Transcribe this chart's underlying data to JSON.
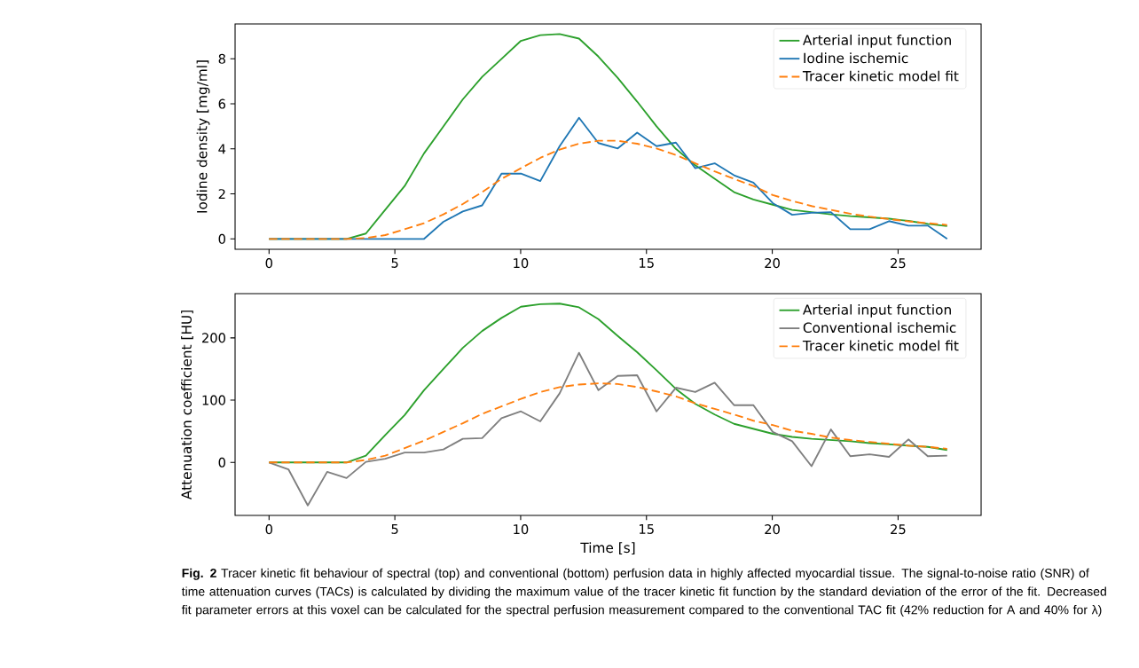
{
  "chart_data": [
    {
      "type": "line",
      "ylabel": "Iodine density [mg/ml]",
      "x": [
        0,
        0.77,
        1.54,
        2.31,
        3.08,
        3.85,
        4.62,
        5.39,
        6.16,
        6.93,
        7.7,
        8.47,
        9.24,
        10.01,
        10.78,
        11.55,
        12.32,
        13.09,
        13.86,
        14.63,
        15.4,
        16.17,
        16.94,
        17.71,
        18.48,
        19.25,
        20.02,
        20.79,
        21.56,
        22.33,
        23.1,
        23.87,
        24.64,
        25.41,
        26.18,
        26.95
      ],
      "series": [
        {
          "name": "Arterial input function",
          "color": "#2ca02c",
          "line_style": "solid",
          "values": [
            0,
            0,
            0,
            0,
            0,
            0.24,
            1.3,
            2.35,
            3.8,
            5.0,
            6.2,
            7.2,
            8.0,
            8.8,
            9.05,
            9.1,
            8.9,
            8.1,
            7.15,
            6.1,
            5.0,
            4.0,
            3.27,
            2.67,
            2.08,
            1.75,
            1.52,
            1.29,
            1.19,
            1.09,
            1.01,
            0.96,
            0.9,
            0.8,
            0.67,
            0.57
          ]
        },
        {
          "name": "Iodine ischemic",
          "color": "#1f77b4",
          "line_style": "solid",
          "values": [
            0,
            0,
            0,
            0,
            0,
            0,
            0,
            0,
            0,
            0.76,
            1.22,
            1.49,
            2.9,
            2.9,
            2.57,
            4.12,
            5.38,
            4.26,
            4.02,
            4.72,
            4.12,
            4.28,
            3.14,
            3.36,
            2.83,
            2.5,
            1.59,
            1.07,
            1.16,
            1.19,
            0.43,
            0.43,
            0.79,
            0.59,
            0.59,
            0
          ]
        },
        {
          "name": "Tracer kinetic model fit",
          "color": "#ff7f0e",
          "line_style": "dashed",
          "values": [
            0,
            0,
            0,
            0,
            0,
            0.04,
            0.17,
            0.43,
            0.7,
            1.09,
            1.55,
            2.08,
            2.67,
            3.14,
            3.6,
            3.97,
            4.23,
            4.36,
            4.36,
            4.23,
            4.02,
            3.73,
            3.36,
            3.0,
            2.67,
            2.35,
            1.95,
            1.69,
            1.46,
            1.29,
            1.12,
            0.99,
            0.88,
            0.78,
            0.7,
            0.62
          ]
        }
      ],
      "xlim": [
        -1.35,
        28.3
      ],
      "ylim": [
        -0.46,
        9.55
      ],
      "xticks": [
        0,
        5,
        10,
        15,
        20,
        25
      ],
      "yticks": [
        0,
        2,
        4,
        6,
        8
      ],
      "grid": false,
      "legend": "top right"
    },
    {
      "type": "line",
      "xlabel": "Time [s]",
      "ylabel": "Attenuation coefficient [HU]",
      "x": [
        0,
        0.77,
        1.54,
        2.31,
        3.08,
        3.85,
        4.62,
        5.39,
        6.16,
        6.93,
        7.7,
        8.47,
        9.24,
        10.01,
        10.78,
        11.55,
        12.32,
        13.09,
        13.86,
        14.63,
        15.4,
        16.17,
        16.94,
        17.71,
        18.48,
        19.25,
        20.02,
        20.79,
        21.56,
        22.33,
        23.1,
        23.87,
        24.64,
        25.41,
        26.18,
        26.95
      ],
      "series": [
        {
          "name": "Arterial input function",
          "color": "#2ca02c",
          "line_style": "solid",
          "values": [
            0,
            0,
            0,
            0,
            0,
            11,
            44,
            76,
            116,
            150,
            184,
            211,
            232,
            250,
            254,
            255,
            249,
            230,
            203,
            177,
            148,
            118,
            94,
            77,
            62,
            54,
            46,
            41,
            38,
            36,
            34,
            31,
            29,
            27,
            25,
            20
          ]
        },
        {
          "name": "Conventional ischemic",
          "color": "#7f7f7f",
          "line_style": "solid",
          "values": [
            0,
            -11,
            -69,
            -15,
            -25,
            1,
            6,
            16,
            16,
            21,
            38,
            39,
            71,
            82,
            66,
            111,
            176,
            116,
            139,
            140,
            82,
            120,
            113,
            128,
            92,
            92,
            49,
            34,
            -6,
            53,
            10,
            13,
            9,
            37,
            10,
            11
          ]
        },
        {
          "name": "Tracer kinetic model fit",
          "color": "#ff7f0e",
          "line_style": "dashed",
          "values": [
            0,
            0,
            0,
            0,
            0,
            4,
            11,
            23,
            35,
            49,
            63,
            78,
            90,
            102,
            113,
            121,
            125,
            127,
            126,
            121,
            114,
            106,
            95,
            86,
            77,
            67,
            60,
            51,
            46,
            40,
            36,
            33,
            30,
            27,
            25,
            22
          ]
        }
      ],
      "xlim": [
        -1.35,
        28.3
      ],
      "ylim": [
        -85,
        271
      ],
      "xticks": [
        0,
        5,
        10,
        15,
        20,
        25
      ],
      "yticks": [
        0,
        100,
        200
      ],
      "grid": false,
      "legend": "top right",
      "annotations": [
        "**Fig. 2** Tracer kinetic fit behaviour of spectral (top) and conventional (bottom) perfusion data in highly affected myocardial tissue. The signal-to-noise ratio (SNR) of time attenuation curves (TACs) is calculated by dividing the maximum value of the tracer kinetic fit function by the standard deviation of the error of the fit. Decreased fit parameter errors at this voxel can be calculated for the spectral perfusion measurement compared to the conventional TAC fit (42% reduction for A and 40% for λ)"
      ]
    }
  ]
}
